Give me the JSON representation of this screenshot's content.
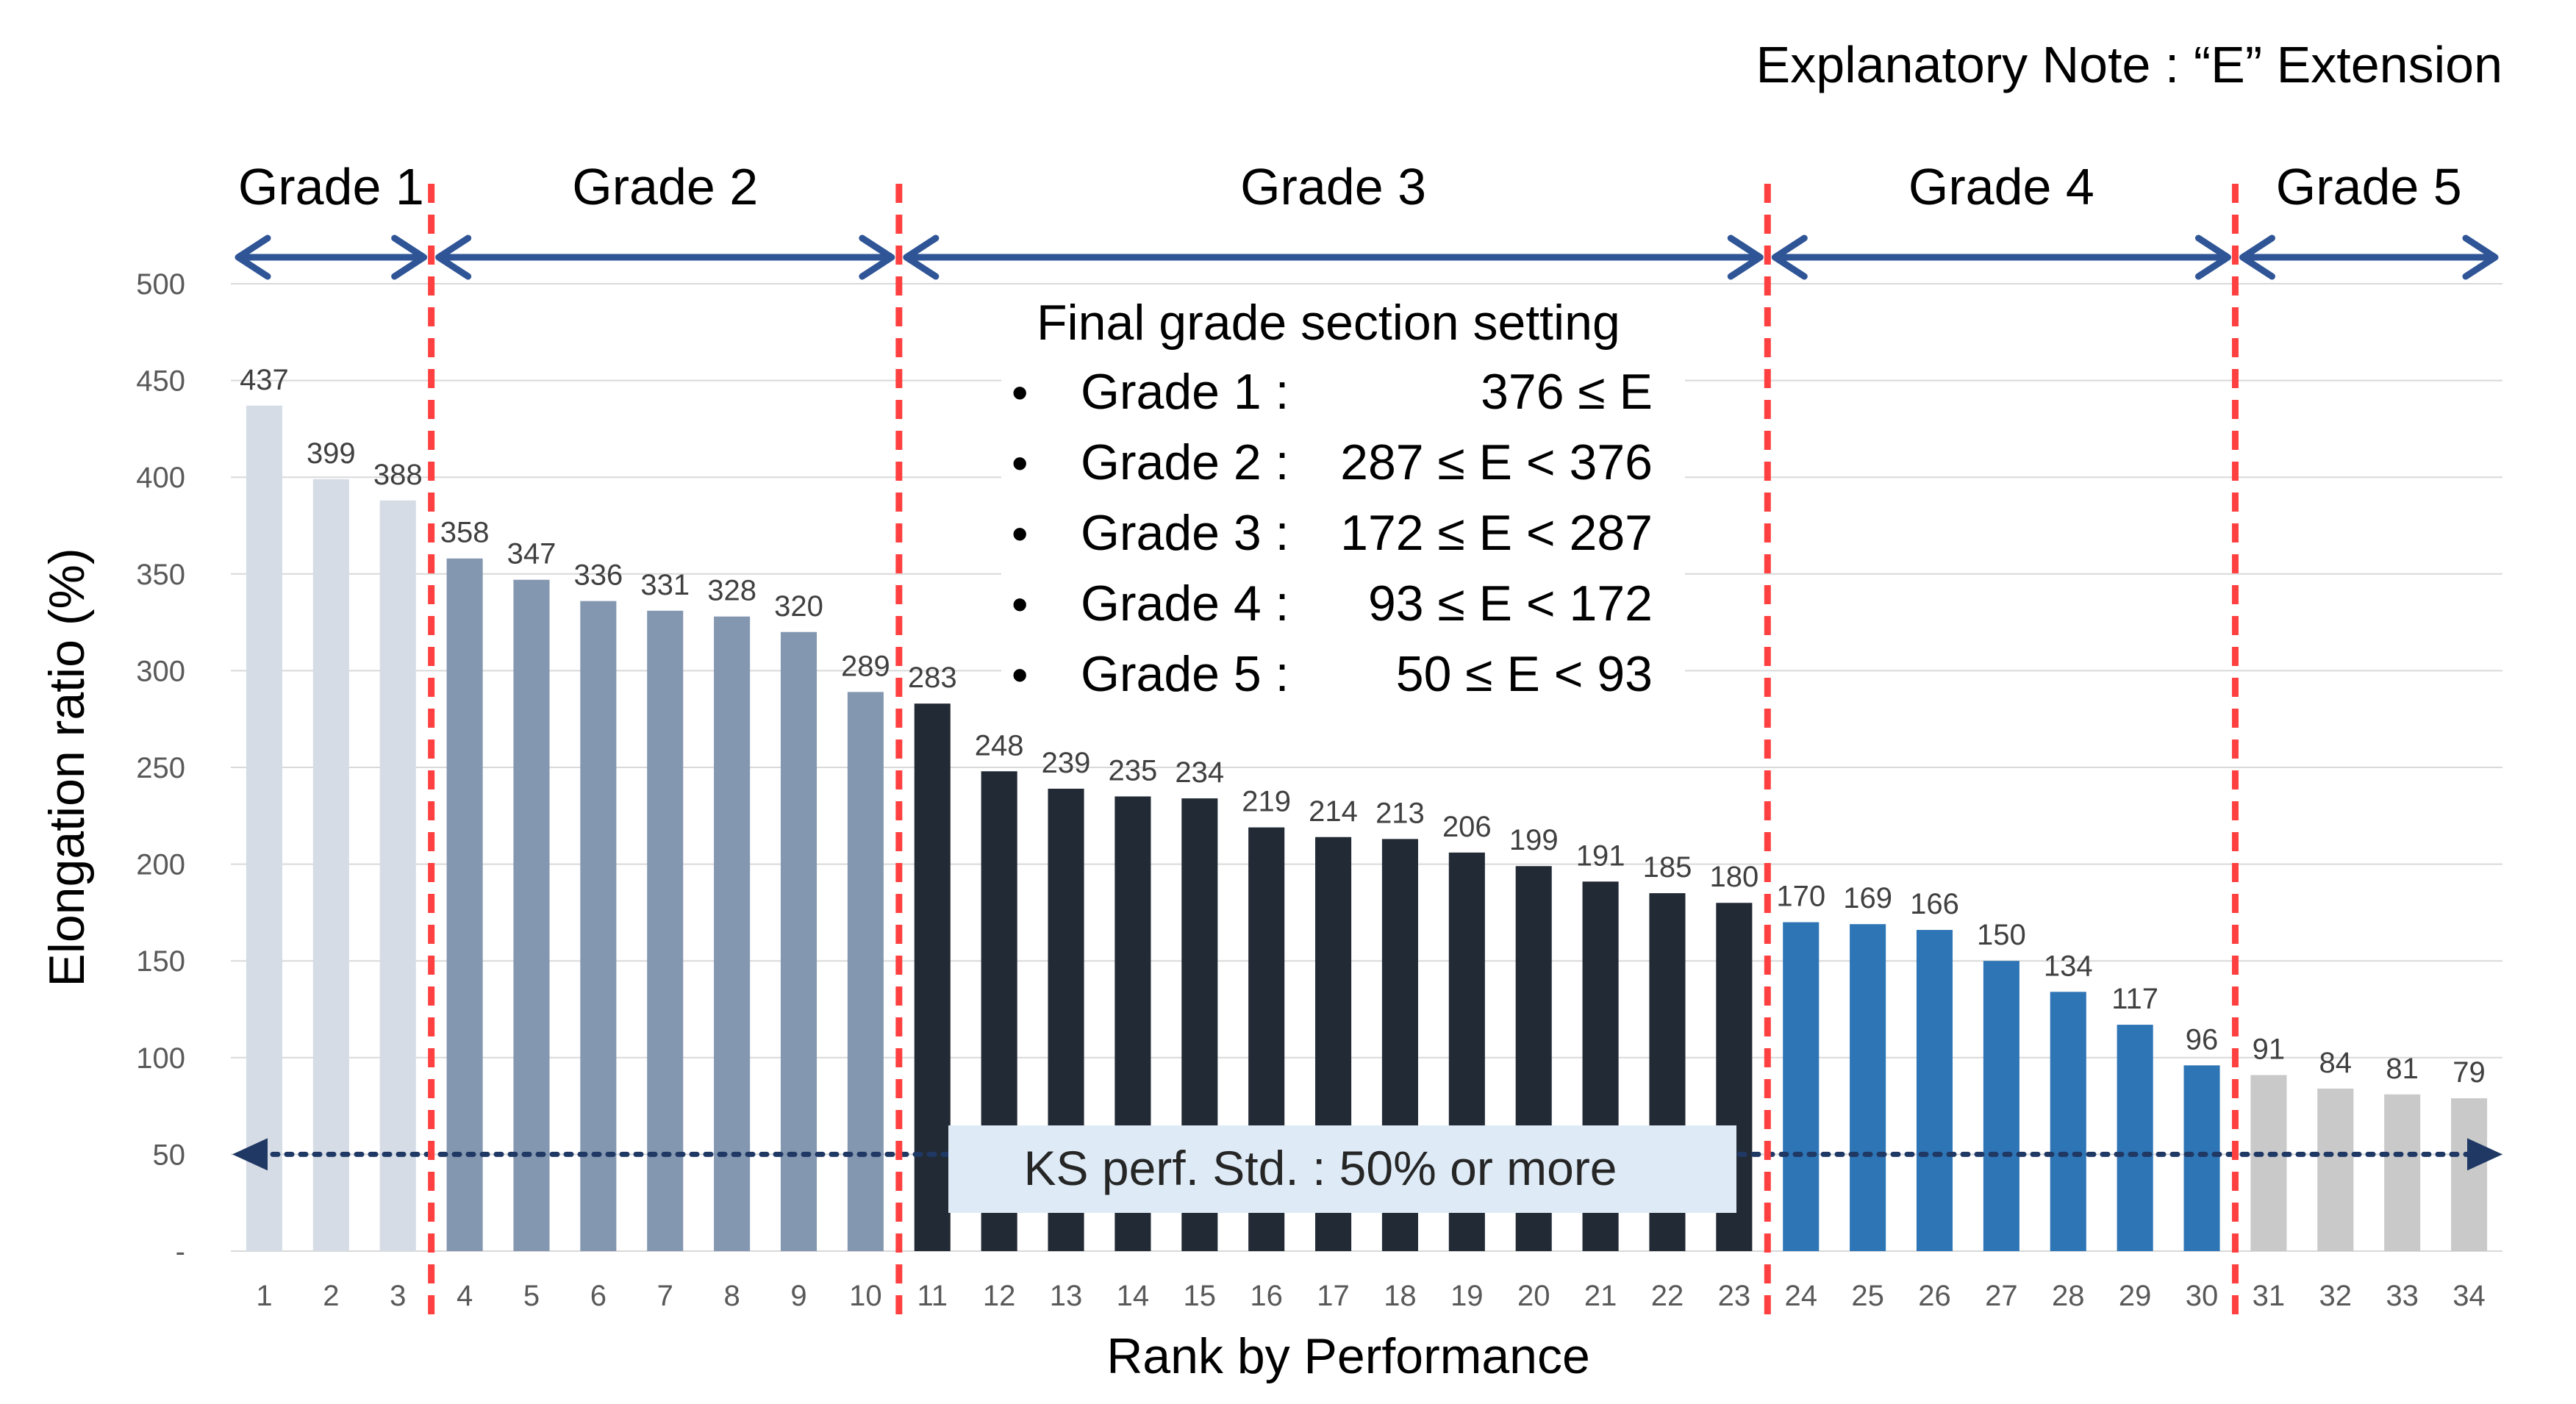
{
  "chart_data": {
    "type": "bar",
    "title": "",
    "explanatory_note": "Explanatory Note : “E” Extension",
    "xlabel": "Rank by Performance",
    "ylabel": "Elongation ratio (%)",
    "ylim": [
      0,
      500
    ],
    "y_ticks": [
      "-",
      "50",
      "100",
      "150",
      "200",
      "250",
      "300",
      "350",
      "400",
      "450",
      "500"
    ],
    "grid": true,
    "categories": [
      "1",
      "2",
      "3",
      "4",
      "5",
      "6",
      "7",
      "8",
      "9",
      "10",
      "11",
      "12",
      "13",
      "14",
      "15",
      "16",
      "17",
      "18",
      "19",
      "20",
      "21",
      "22",
      "23",
      "24",
      "25",
      "26",
      "27",
      "28",
      "29",
      "30",
      "31",
      "32",
      "33",
      "34"
    ],
    "values": [
      437,
      399,
      388,
      358,
      347,
      336,
      331,
      328,
      320,
      289,
      283,
      248,
      239,
      235,
      234,
      219,
      214,
      213,
      206,
      199,
      191,
      185,
      180,
      170,
      169,
      166,
      150,
      134,
      117,
      96,
      91,
      84,
      81,
      79
    ],
    "bar_colors": [
      "#d6dce5",
      "#d6dce5",
      "#d6dce5",
      "#8497b0",
      "#8497b0",
      "#8497b0",
      "#8497b0",
      "#8497b0",
      "#8497b0",
      "#8497b0",
      "#222a35",
      "#222a35",
      "#222a35",
      "#222a35",
      "#222a35",
      "#222a35",
      "#222a35",
      "#222a35",
      "#222a35",
      "#222a35",
      "#222a35",
      "#222a35",
      "#222a35",
      "#2e75b6",
      "#2e75b6",
      "#2e75b6",
      "#2e75b6",
      "#2e75b6",
      "#2e75b6",
      "#2e75b6",
      "#c9c9c9",
      "#c9c9c9",
      "#c9c9c9",
      "#c9c9c9"
    ],
    "grade_boundaries": [
      3.5,
      10.5,
      23.5,
      30.5
    ],
    "grades": [
      {
        "label": "Grade 1",
        "from": 0.5,
        "to": 3.5
      },
      {
        "label": "Grade 2",
        "from": 3.5,
        "to": 10.5
      },
      {
        "label": "Grade 3",
        "from": 10.5,
        "to": 23.5
      },
      {
        "label": "Grade 4",
        "from": 23.5,
        "to": 30.5
      },
      {
        "label": "Grade 5",
        "from": 30.5,
        "to": 34.5
      }
    ],
    "criteria_box": {
      "title": "Final grade section setting",
      "items": [
        {
          "bullet": "•",
          "grade": "Grade 1 :",
          "range": "376 ≤ E"
        },
        {
          "bullet": "•",
          "grade": "Grade 2 :",
          "range": "287 ≤ E < 376"
        },
        {
          "bullet": "•",
          "grade": "Grade 3 :",
          "range": "172 ≤ E < 287"
        },
        {
          "bullet": "•",
          "grade": "Grade 4 :",
          "range": "93 ≤ E < 172"
        },
        {
          "bullet": "•",
          "grade": "Grade 5 :",
          "range": "50 ≤ E <   93"
        }
      ]
    },
    "reference_line": {
      "value": 50,
      "label": "KS perf. Std. : 50% or more"
    },
    "colors": {
      "grade_arrow": "#2f5597",
      "boundary_line": "#ff4040",
      "reference_line": "#1f3864",
      "reference_box": "#deebf7",
      "grid": "#d9d9d9",
      "axis_text": "#595959"
    }
  }
}
